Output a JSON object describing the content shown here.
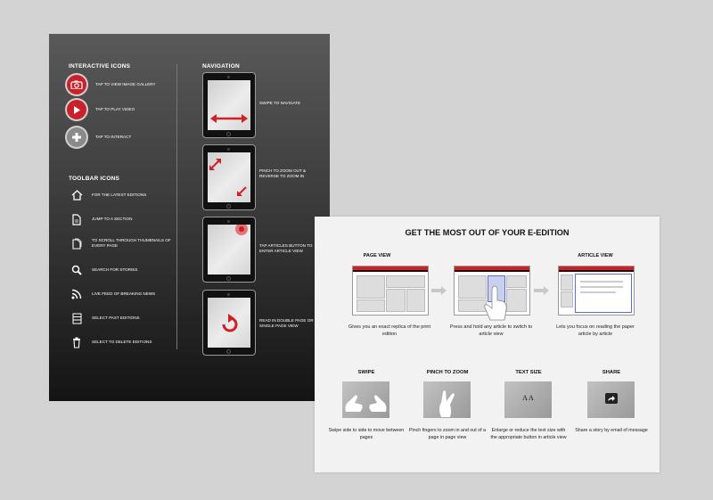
{
  "left_panel": {
    "interactive_title": "INTERACTIVE ICONS",
    "interactive": [
      {
        "icon": "camera-icon",
        "label": "TAP TO VIEW IMAGE GALLERY"
      },
      {
        "icon": "play-icon",
        "label": "TAP TO PLAY VIDEO"
      },
      {
        "icon": "plus-icon",
        "label": "TAP TO INTERACT"
      }
    ],
    "toolbar_title": "TOOLBAR ICONS",
    "toolbar": [
      {
        "icon": "home-icon",
        "label": "FOR THE LATEST EDITIONS"
      },
      {
        "icon": "document-icon",
        "label": "JUMP TO A SECTION"
      },
      {
        "icon": "pages-icon",
        "label": "TO SCROLL THROUGH THUMBNAILS OF EVERY PAGE"
      },
      {
        "icon": "search-icon",
        "label": "SEARCH FOR STORIES"
      },
      {
        "icon": "rss-icon",
        "label": "LIVE FEED OF BREAKING NEWS"
      },
      {
        "icon": "editions-stack-icon",
        "label": "SELECT PAST EDITIONS"
      },
      {
        "icon": "trash-icon",
        "label": "SELECT TO DELETE EDITIONS"
      }
    ],
    "navigation_title": "NAVIGATION",
    "navigation": [
      {
        "label": "SWIPE TO NAVIGATE"
      },
      {
        "label": "PINCH TO ZOOM OUT & REVERSE TO ZOOM IN"
      },
      {
        "label": "TAP ARTICLES BUTTON TO ENTER ARTICLE VIEW"
      },
      {
        "label": "READ IN DOUBLE PAGE OR SINGLE PAGE VIEW"
      }
    ]
  },
  "right_card": {
    "title": "GET THE MOST OUT OF YOUR E-EDITION",
    "page_view_title": "PAGE VIEW",
    "article_view_title": "ARTICLE VIEW",
    "captions": [
      "Gives you an exact replica of the print edition",
      "Press and hold any article to switch to article view",
      "Lets you focus on reading the paper article by article"
    ],
    "features": [
      {
        "title": "SWIPE",
        "caption": "Swipe side to side to move between pages"
      },
      {
        "title": "PINCH TO ZOOM",
        "caption": "Pinch fingers to zoom in and out of a page in page view"
      },
      {
        "title": "TEXT  SIZE",
        "caption": "Enlarge or reduce the text size with the appropriate button in article view"
      },
      {
        "title": "SHARE",
        "caption": "Share a story by email of message"
      }
    ],
    "text_size_glyph": "A A"
  },
  "colors": {
    "accent": "#c9202a",
    "panel_dark": "#3c3c3c",
    "card_bg": "#f2f2f2"
  }
}
